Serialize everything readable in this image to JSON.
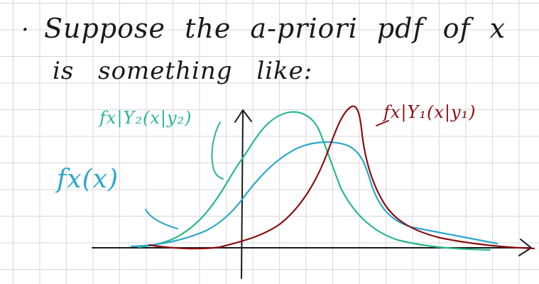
{
  "text": {
    "bullet": "·",
    "line1": "Suppose the a-priori pdf of x",
    "line2": "is something like:"
  },
  "labels": {
    "green": "fx|Y₂(x|y₂)",
    "blue": "fx(x)",
    "red": "fx|Y₁(x|y₁)"
  },
  "colors": {
    "ink": "#1a1a1a",
    "green": "#2bb987",
    "blue": "#2aa7cf",
    "red": "#8b0f12"
  }
}
